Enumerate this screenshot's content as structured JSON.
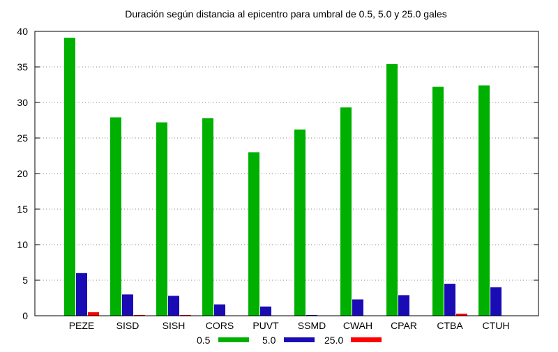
{
  "chart_data": {
    "type": "bar",
    "title": "Duración según distancia al epicentro para umbral de 0.5, 5.0 y 25.0 gales",
    "xlabel": "",
    "ylabel": "",
    "categories": [
      "PEZE",
      "SISD",
      "SISH",
      "CORS",
      "PUVT",
      "SSMD",
      "CWAH",
      "CPAR",
      "CTBA",
      "CTUH"
    ],
    "ylim": [
      0,
      40
    ],
    "yticks": [
      "0",
      "5",
      "10",
      "15",
      "20",
      "25",
      "30",
      "35",
      "40"
    ],
    "grid": true,
    "legend_position": "bottom",
    "series": [
      {
        "name": "0.5",
        "color": "#00b000",
        "values": [
          39.1,
          27.9,
          27.2,
          27.8,
          23.0,
          26.2,
          29.3,
          35.4,
          32.2,
          32.4
        ]
      },
      {
        "name": "5.0",
        "color": "#1a0cb4",
        "values": [
          6.0,
          3.0,
          2.8,
          1.6,
          1.3,
          0.1,
          2.3,
          2.9,
          4.5,
          4.0
        ]
      },
      {
        "name": "25.0",
        "color": "#ff0000",
        "values": [
          0.5,
          0.1,
          0.1,
          0.0,
          0.0,
          0.0,
          0.0,
          0.0,
          0.3,
          0.0
        ]
      }
    ]
  }
}
